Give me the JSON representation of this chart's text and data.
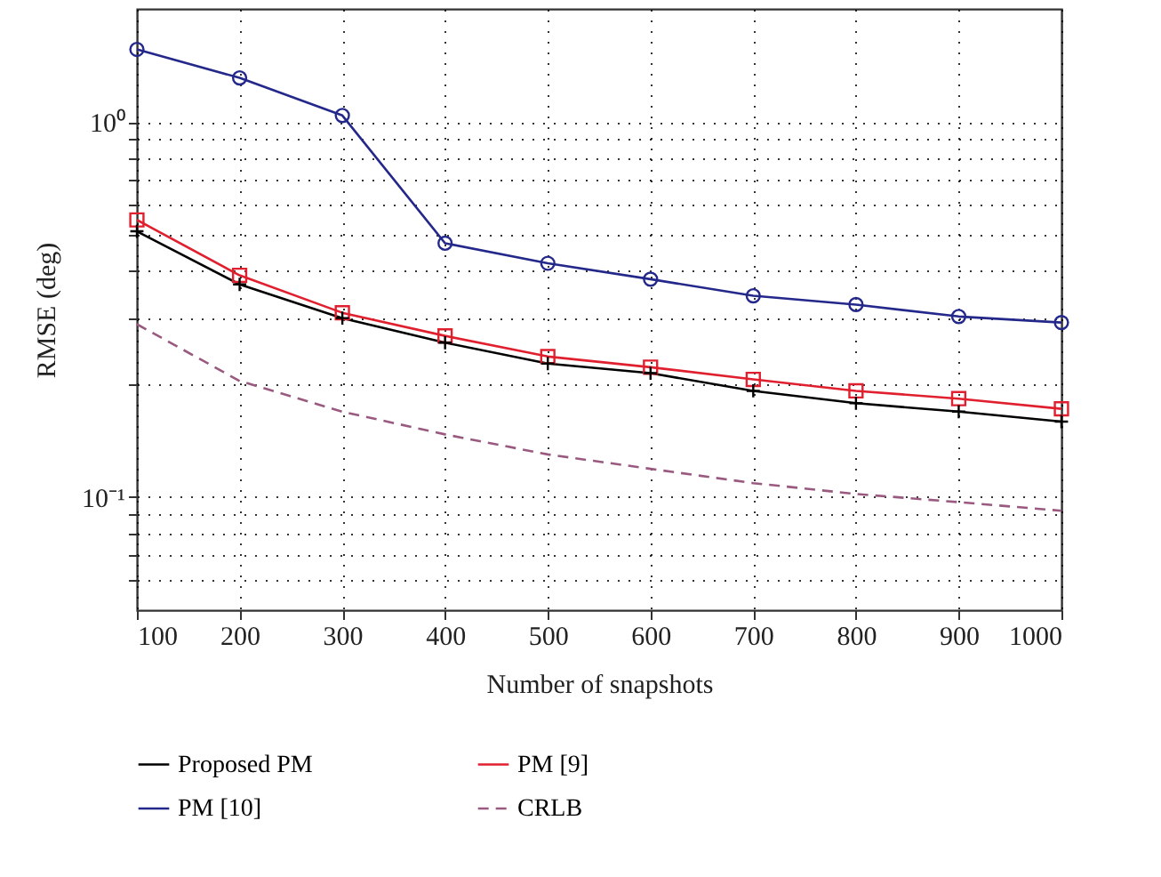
{
  "chart_data": {
    "type": "line",
    "xlabel": "Number of snapshots",
    "ylabel": "RMSE (deg)",
    "x": [
      100,
      200,
      300,
      400,
      500,
      600,
      700,
      800,
      900,
      1000
    ],
    "series": [
      {
        "name": "Proposed PM",
        "color": "#000000",
        "marker": "cross",
        "line_style": "solid",
        "values": [
          0.511,
          0.369,
          0.3,
          0.258,
          0.227,
          0.214,
          0.192,
          0.178,
          0.169,
          0.159
        ]
      },
      {
        "name": "PM [9]",
        "color": "#e0202e",
        "marker": "square",
        "line_style": "solid",
        "values": [
          0.548,
          0.39,
          0.31,
          0.269,
          0.237,
          0.222,
          0.206,
          0.192,
          0.183,
          0.172
        ]
      },
      {
        "name": "PM [10]",
        "color": "#23288a",
        "marker": "circle",
        "line_style": "solid",
        "values": [
          1.56,
          1.31,
          1.04,
          0.475,
          0.42,
          0.381,
          0.344,
          0.326,
          0.303,
          0.292
        ]
      },
      {
        "name": "CRLB",
        "color": "#9a5a80",
        "marker": "none",
        "line_style": "dashed",
        "values": [
          0.289,
          0.204,
          0.169,
          0.147,
          0.13,
          0.119,
          0.109,
          0.102,
          0.097,
          0.092
        ]
      }
    ],
    "log": "y",
    "xlim": [
      100,
      1000
    ],
    "ylim": [
      0.05,
      2
    ],
    "xticks": [
      100,
      200,
      300,
      400,
      500,
      600,
      700,
      800,
      900,
      1000
    ],
    "yticks": [
      {
        "value": 0.06,
        "label": null
      },
      {
        "value": 0.07,
        "label": null
      },
      {
        "value": 0.08,
        "label": null
      },
      {
        "value": 0.09,
        "label": null
      },
      {
        "value": 0.1,
        "label": "10⁻¹"
      },
      {
        "value": 0.2,
        "label": null
      },
      {
        "value": 0.3,
        "label": null
      },
      {
        "value": 0.4,
        "label": null
      },
      {
        "value": 0.5,
        "label": null
      },
      {
        "value": 0.6,
        "label": null
      },
      {
        "value": 0.7,
        "label": null
      },
      {
        "value": 0.8,
        "label": null
      },
      {
        "value": 0.9,
        "label": null
      },
      {
        "value": 1,
        "label": "10⁰"
      }
    ],
    "grid": true,
    "legend": "bottom"
  }
}
